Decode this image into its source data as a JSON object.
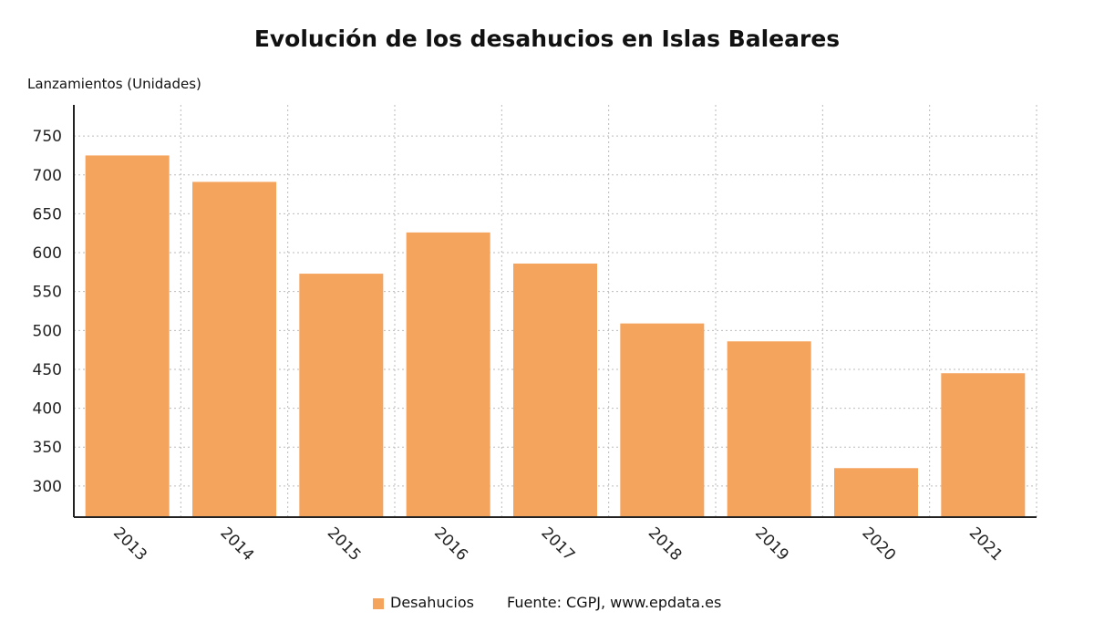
{
  "chart_data": {
    "type": "bar",
    "title": "Evolución de los desahucios en Islas Baleares",
    "ylabel": "Lanzamientos (Unidades)",
    "xlabel": "",
    "categories": [
      "2013",
      "2014",
      "2015",
      "2016",
      "2017",
      "2018",
      "2019",
      "2020",
      "2021"
    ],
    "series": [
      {
        "name": "Desahucios",
        "values": [
          725,
          691,
          573,
          626,
          586,
          509,
          486,
          323,
          445
        ]
      }
    ],
    "ylim": [
      260,
      790
    ],
    "yticks": [
      300,
      350,
      400,
      450,
      500,
      550,
      600,
      650,
      700,
      750
    ],
    "grid": true,
    "legend_position": "bottom",
    "bar_color": "#f5a45e"
  },
  "source_note": "Fuente: CGPJ, www.epdata.es"
}
